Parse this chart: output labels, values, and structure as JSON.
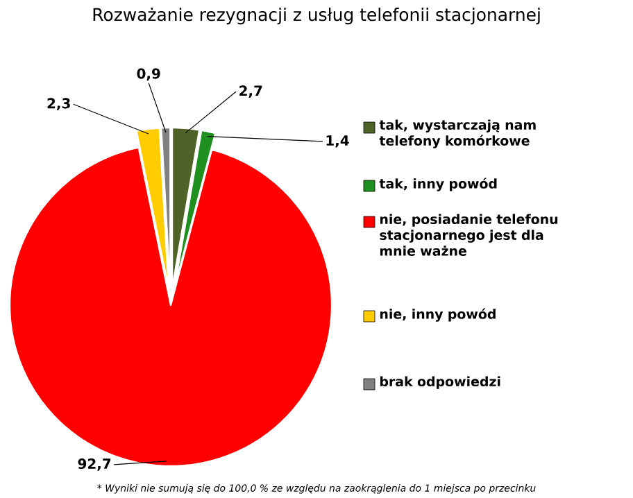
{
  "chart_data": {
    "type": "pie",
    "title": "Rozważanie rezygnacji z usług telefonii stacjonarnej",
    "categories": [
      "tak, wystarczają nam telefony komórkowe",
      "tak, inny powód",
      "nie, posiadanie telefonu stacjonarnego jest dla mnie ważne",
      "nie, inny powód",
      "brak odpowiedzi"
    ],
    "values": [
      2.7,
      1.4,
      92.7,
      2.3,
      0.9
    ],
    "value_labels": [
      "2,7",
      "1,4",
      "92,7",
      "2,3",
      "0,9"
    ],
    "colors": [
      "#4f6228",
      "#1f8f1f",
      "#ff0000",
      "#ffcc00",
      "#808080"
    ],
    "legend": "right",
    "annotations": [
      "* Wyniki nie sumują się do 100,0 % ze względu na zaokrąglenia do 1 miejsca po przecinku"
    ]
  }
}
